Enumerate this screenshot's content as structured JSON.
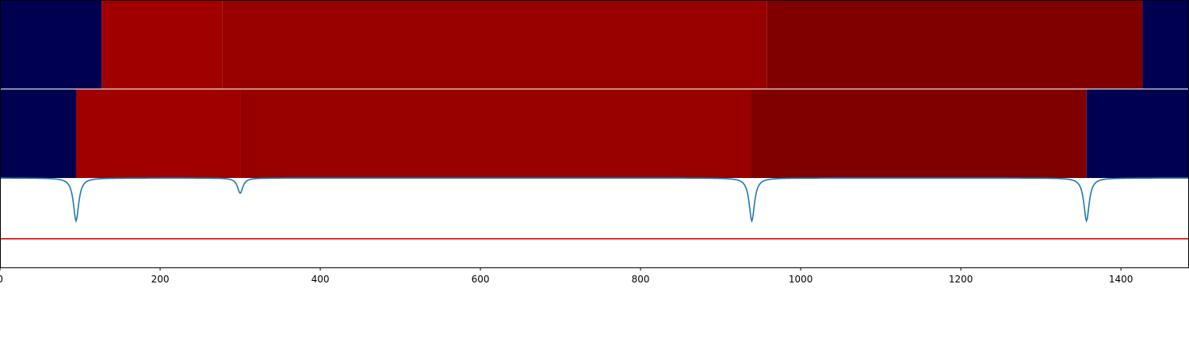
{
  "chart_data": {
    "type": "heatmap",
    "title": "",
    "xlabel": "",
    "ylabel": "",
    "xlim": [
      0,
      1485
    ],
    "x_ticks": [
      0,
      200,
      400,
      600,
      800,
      1000,
      1200,
      1400
    ],
    "x_tick_labels": [
      "0",
      "200",
      "400",
      "600",
      "800",
      "1000",
      "1200",
      "1400"
    ],
    "colors": {
      "navy": "#000050",
      "red_bright": "#a00000",
      "red_mid": "#980000",
      "red_dark": "#800000",
      "line": "#1f77b4",
      "threshold": "#e00000"
    },
    "rows": [
      {
        "name": "",
        "segments": [
          {
            "start": 0,
            "end": 127,
            "color": "navy"
          },
          {
            "start": 127,
            "end": 278,
            "color": "red_bright"
          },
          {
            "start": 278,
            "end": 958,
            "color": "red_mid"
          },
          {
            "start": 958,
            "end": 1427,
            "color": "red_dark"
          },
          {
            "start": 1427,
            "end": 1485,
            "color": "navy"
          }
        ]
      },
      {
        "name": "",
        "segments": [
          {
            "start": 0,
            "end": 95,
            "color": "navy"
          },
          {
            "start": 95,
            "end": 300,
            "color": "red_bright"
          },
          {
            "start": 300,
            "end": 938,
            "color": "red_mid"
          },
          {
            "start": 938,
            "end": 1357,
            "color": "red_dark"
          },
          {
            "start": 1357,
            "end": 1485,
            "color": "navy"
          }
        ]
      }
    ],
    "line_series": {
      "ylim": [
        -1.0,
        0.0
      ],
      "baseline": 0,
      "dips": [
        {
          "x": 95,
          "depth": -0.48
        },
        {
          "x": 300,
          "depth": -0.17
        },
        {
          "x": 939,
          "depth": -0.48
        },
        {
          "x": 1357,
          "depth": -0.48
        }
      ]
    },
    "threshold": -0.68
  }
}
